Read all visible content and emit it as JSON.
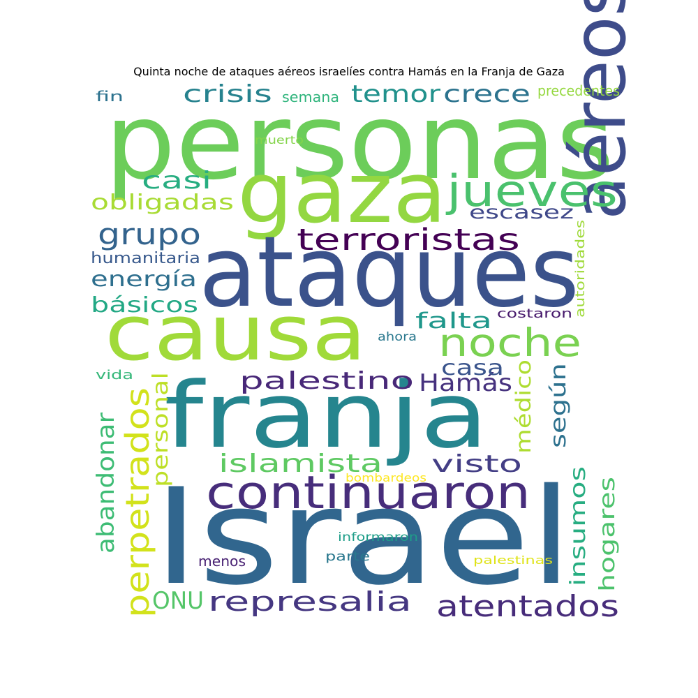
{
  "title": "Quinta noche de ataques aéreos israelíes contra Hamás en la Franja de Gaza",
  "words": [
    {
      "text": "personas",
      "color": "#6ccd5a"
    },
    {
      "text": "gaza",
      "color": "#93d741"
    },
    {
      "text": "ataques",
      "color": "#3b528b"
    },
    {
      "text": "causa",
      "color": "#a0da39"
    },
    {
      "text": "franja",
      "color": "#25858e"
    },
    {
      "text": "Israel",
      "color": "#31668e"
    },
    {
      "text": "aéreos",
      "color": "#3e4c8a"
    },
    {
      "text": "jueves",
      "color": "#4ac16d"
    },
    {
      "text": "noche",
      "color": "#7ad151"
    },
    {
      "text": "continuaron",
      "color": "#472d7b"
    },
    {
      "text": "terroristas",
      "color": "#440154"
    },
    {
      "text": "grupo",
      "color": "#33638d"
    },
    {
      "text": "temor",
      "color": "#21918c"
    },
    {
      "text": "crece",
      "color": "#2c738e"
    },
    {
      "text": "crisis",
      "color": "#26828e"
    },
    {
      "text": "casi",
      "color": "#27ad81"
    },
    {
      "text": "obligadas",
      "color": "#a8db34"
    },
    {
      "text": "escasez",
      "color": "#3f4889"
    },
    {
      "text": "energía",
      "color": "#2e6f8e"
    },
    {
      "text": "básicos",
      "color": "#22a884"
    },
    {
      "text": "humanitaria",
      "color": "#38598c"
    },
    {
      "text": "falta",
      "color": "#1f978b"
    },
    {
      "text": "palestino",
      "color": "#482878"
    },
    {
      "text": "Hamás",
      "color": "#46327e"
    },
    {
      "text": "casa",
      "color": "#3a548c"
    },
    {
      "text": "según",
      "color": "#2d718e"
    },
    {
      "text": "islamista",
      "color": "#5ec962"
    },
    {
      "text": "visto",
      "color": "#433e85"
    },
    {
      "text": "perpetrados",
      "color": "#d2e21b"
    },
    {
      "text": "abandonar",
      "color": "#3dbc74"
    },
    {
      "text": "personal",
      "color": "#bddf26"
    },
    {
      "text": "médico",
      "color": "#addc30"
    },
    {
      "text": "insumos",
      "color": "#27ad81"
    },
    {
      "text": "hogares",
      "color": "#4cc26c"
    },
    {
      "text": "represalia",
      "color": "#453781"
    },
    {
      "text": "atentados",
      "color": "#472c7a"
    },
    {
      "text": "ONU",
      "color": "#54c568"
    },
    {
      "text": "autoridades",
      "color": "#9fda3a"
    },
    {
      "text": "costaron",
      "color": "#481b6d"
    },
    {
      "text": "ahora",
      "color": "#2a788e"
    },
    {
      "text": "vida",
      "color": "#35b779"
    },
    {
      "text": "bombardeos",
      "color": "#fde725"
    },
    {
      "text": "informaron",
      "color": "#1f9e89"
    },
    {
      "text": "parte",
      "color": "#2a788e"
    },
    {
      "text": "menos",
      "color": "#482173"
    },
    {
      "text": "palestinas",
      "color": "#dfe318"
    },
    {
      "text": "fin",
      "color": "#2c728e"
    },
    {
      "text": "semana",
      "color": "#2fb47c"
    },
    {
      "text": "precedentes",
      "color": "#95d840"
    },
    {
      "text": "muerto",
      "color": "#84d44b"
    }
  ]
}
